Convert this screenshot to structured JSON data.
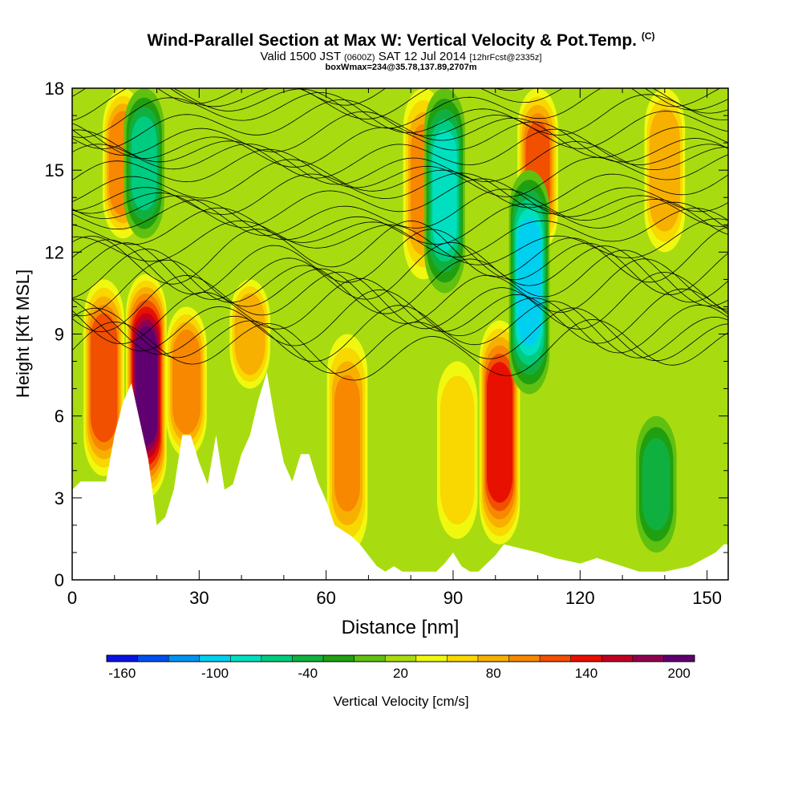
{
  "header": {
    "title_main": "Wind-Parallel Section at Max W: Vertical Velocity & Pot.Temp.",
    "title_mark": "(C)",
    "valid_prefix": "Valid 1500 JST",
    "valid_utc": "(0600Z)",
    "valid_date": "SAT 12 Jul 2014",
    "valid_fcst": "[12hrFcst@2335z]",
    "box_info": "boxWmax=234@35.78,137.89,2707m"
  },
  "colorbar": {
    "label": "Vertical Velocity [cm/s]",
    "colors": [
      "#0a14e0",
      "#0050f0",
      "#0094f0",
      "#00d0f0",
      "#00e0c0",
      "#00cc80",
      "#10b040",
      "#20a010",
      "#60c010",
      "#a8dc10",
      "#f0f810",
      "#f8d800",
      "#f8b000",
      "#f88800",
      "#f05000",
      "#e81000",
      "#c00020",
      "#900050",
      "#600070"
    ],
    "tick_labels": [
      "-160",
      "-100",
      "-40",
      "20",
      "80",
      "140",
      "200"
    ]
  },
  "chart_data": {
    "type": "heatmap",
    "xlabel": "Distance [nm]",
    "ylabel": "Height [Kft MSL]",
    "xlim": [
      0,
      155
    ],
    "ylim": [
      0,
      18
    ],
    "x_tick_labels": [
      "0",
      "30",
      "60",
      "90",
      "120",
      "150"
    ],
    "y_tick_labels": [
      "0",
      "3",
      "6",
      "9",
      "12",
      "15",
      "18"
    ],
    "terrain_kft": [
      [
        0,
        3.3
      ],
      [
        2,
        3.6
      ],
      [
        8,
        3.6
      ],
      [
        10,
        5.3
      ],
      [
        12,
        6.5
      ],
      [
        14,
        7.2
      ],
      [
        16,
        5.8
      ],
      [
        18,
        4.4
      ],
      [
        20,
        2.0
      ],
      [
        22,
        2.3
      ],
      [
        24,
        3.3
      ],
      [
        26,
        5.3
      ],
      [
        28,
        5.3
      ],
      [
        30,
        4.3
      ],
      [
        32,
        3.5
      ],
      [
        34,
        5.3
      ],
      [
        36,
        3.3
      ],
      [
        38,
        3.5
      ],
      [
        40,
        4.6
      ],
      [
        42,
        5.3
      ],
      [
        44,
        6.6
      ],
      [
        46,
        7.6
      ],
      [
        48,
        5.8
      ],
      [
        50,
        4.3
      ],
      [
        52,
        3.6
      ],
      [
        54,
        4.6
      ],
      [
        56,
        4.6
      ],
      [
        58,
        3.6
      ],
      [
        60,
        2.9
      ],
      [
        62,
        2.0
      ],
      [
        64,
        1.8
      ],
      [
        66,
        1.6
      ],
      [
        68,
        1.3
      ],
      [
        70,
        0.9
      ],
      [
        72,
        0.5
      ],
      [
        74,
        0.3
      ],
      [
        76,
        0.5
      ],
      [
        78,
        0.3
      ],
      [
        86,
        0.3
      ],
      [
        88,
        0.6
      ],
      [
        90,
        1.0
      ],
      [
        92,
        0.5
      ],
      [
        94,
        0.3
      ],
      [
        96,
        0.3
      ],
      [
        100,
        0.9
      ],
      [
        102,
        1.3
      ],
      [
        110,
        1.0
      ],
      [
        114,
        0.8
      ],
      [
        120,
        0.6
      ],
      [
        124,
        0.8
      ],
      [
        130,
        0.5
      ],
      [
        134,
        0.3
      ],
      [
        140,
        0.3
      ],
      [
        146,
        0.5
      ],
      [
        152,
        1.0
      ],
      [
        154,
        1.3
      ],
      [
        155,
        1.3
      ]
    ],
    "velocity_cores": [
      {
        "x": 7.5,
        "w_cm_s": 130,
        "bottom_kft": 3.8,
        "top_kft": 11.0
      },
      {
        "x": 17.5,
        "w_cm_s": 200,
        "bottom_kft": 3.0,
        "top_kft": 11.2
      },
      {
        "x": 27,
        "w_cm_s": 110,
        "bottom_kft": 4.5,
        "top_kft": 10.0
      },
      {
        "x": 42,
        "w_cm_s": 90,
        "bottom_kft": 7.0,
        "top_kft": 11.0
      },
      {
        "x": 65,
        "w_cm_s": 100,
        "bottom_kft": 1.0,
        "top_kft": 9.0
      },
      {
        "x": 91,
        "w_cm_s": 70,
        "bottom_kft": 1.5,
        "top_kft": 8.0
      },
      {
        "x": 101,
        "w_cm_s": 150,
        "bottom_kft": 1.3,
        "top_kft": 9.5
      },
      {
        "x": 12,
        "w_cm_s": 110,
        "bottom_kft": 12.5,
        "top_kft": 18.0
      },
      {
        "x": 83,
        "w_cm_s": 100,
        "bottom_kft": 11.0,
        "top_kft": 18.0
      },
      {
        "x": 110,
        "w_cm_s": 120,
        "bottom_kft": 12.0,
        "top_kft": 18.0
      },
      {
        "x": 140,
        "w_cm_s": 90,
        "bottom_kft": 12.0,
        "top_kft": 18.0
      },
      {
        "x": 17,
        "w_cm_s": -60,
        "bottom_kft": 12.5,
        "top_kft": 18.0
      },
      {
        "x": 88,
        "w_cm_s": -70,
        "bottom_kft": 10.5,
        "top_kft": 18.0
      },
      {
        "x": 108,
        "w_cm_s": -90,
        "bottom_kft": 6.8,
        "top_kft": 15.0
      },
      {
        "x": 138,
        "w_cm_s": -30,
        "bottom_kft": 1.0,
        "top_kft": 6.0
      }
    ]
  }
}
